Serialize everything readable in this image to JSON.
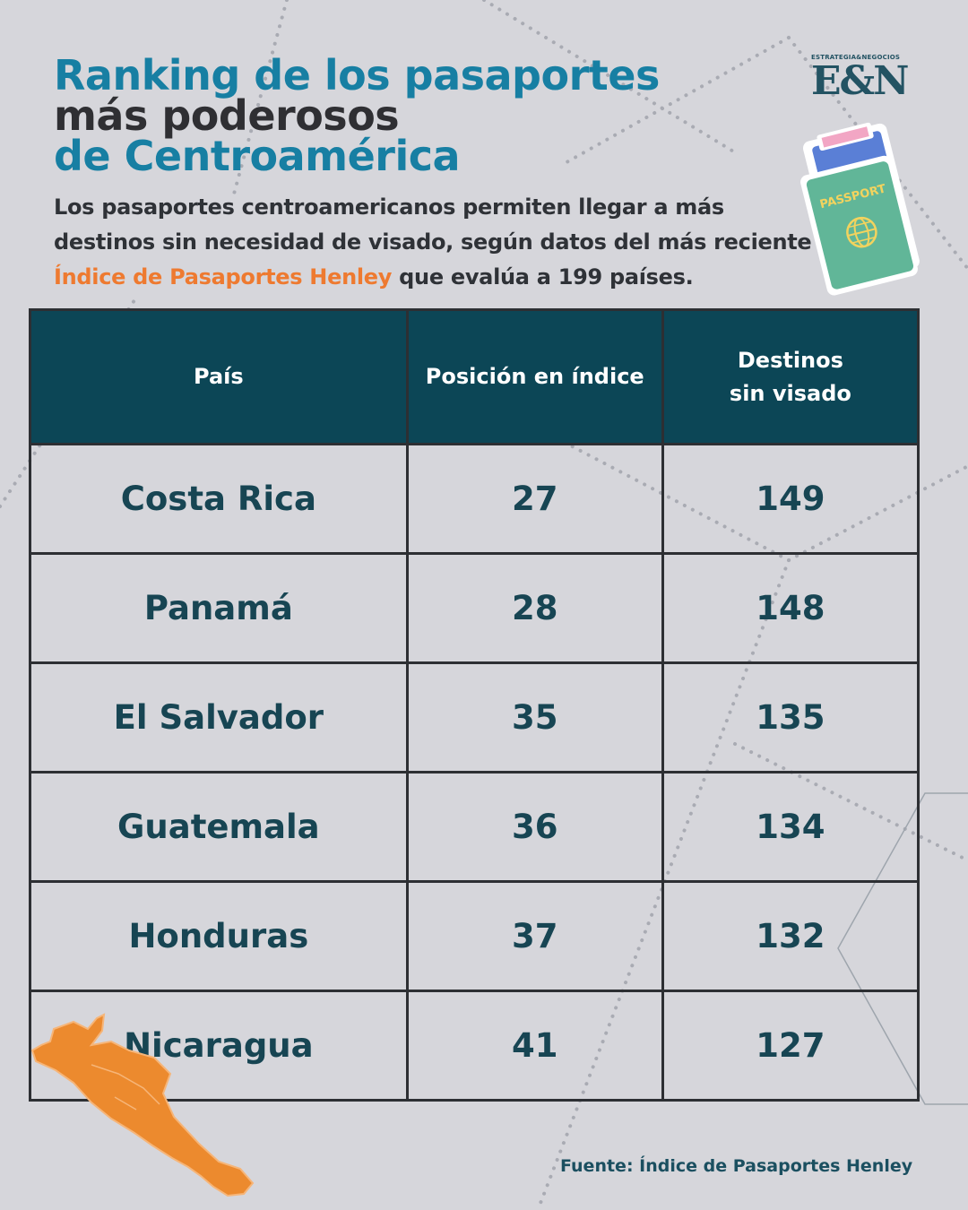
{
  "title": {
    "line1": "Ranking de los pasaportes",
    "line2": "más poderosos",
    "line3": "de Centroamérica"
  },
  "subtitle": {
    "text_before": "Los pasaportes centroamericanos permiten llegar a más destinos sin necesidad de visado, según datos del más reciente ",
    "highlight": "Índice de Pasaportes Henley",
    "text_after": " que evalúa a 199 países."
  },
  "logo": {
    "tagline": "ESTRATEGIA&NEGOCIOS",
    "name": "E&N"
  },
  "passport_illustration": {
    "label": "PASSPORT"
  },
  "table": {
    "headers": [
      "País",
      "Posición en índice",
      "Destinos sin visado"
    ],
    "rows": [
      {
        "country": "Costa Rica",
        "position": "27",
        "destinations": "149"
      },
      {
        "country": "Panamá",
        "position": "28",
        "destinations": "148"
      },
      {
        "country": "El Salvador",
        "position": "35",
        "destinations": "135"
      },
      {
        "country": "Guatemala",
        "position": "36",
        "destinations": "134"
      },
      {
        "country": "Honduras",
        "position": "37",
        "destinations": "132"
      },
      {
        "country": "Nicaragua",
        "position": "41",
        "destinations": "127"
      }
    ]
  },
  "source": "Fuente: Índice de Pasaportes Henley",
  "colors": {
    "background": "#d6d6db",
    "title_blue": "#177fa3",
    "header_bg": "#0c4656",
    "highlight_orange": "#ee7a30",
    "cell_text": "#174553",
    "map_orange": "#ec8a2e"
  }
}
